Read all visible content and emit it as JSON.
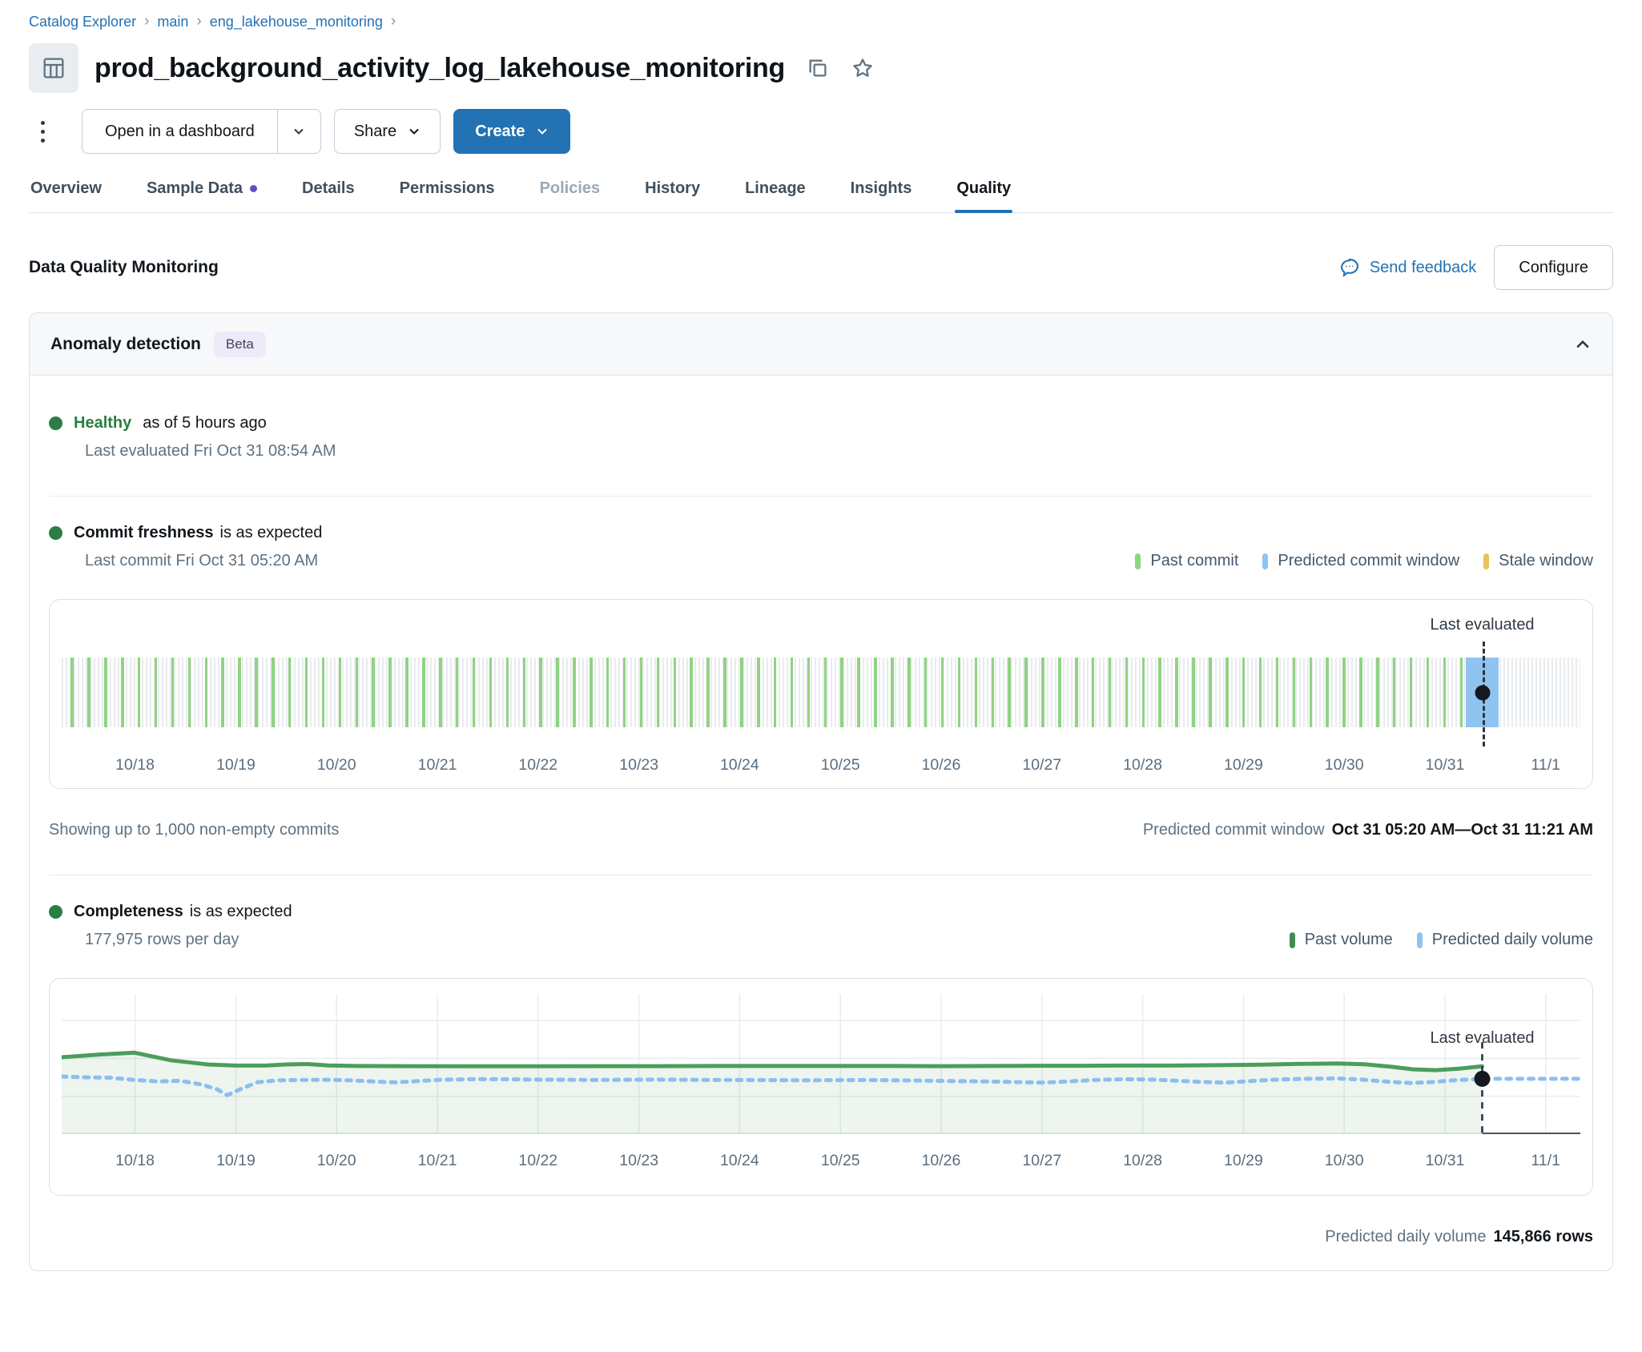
{
  "breadcrumb": {
    "items": [
      "Catalog Explorer",
      "main",
      "eng_lakehouse_monitoring"
    ],
    "separator": "›"
  },
  "header": {
    "title": "prod_background_activity_log_lakehouse_monitoring"
  },
  "actions": {
    "open_dashboard": "Open in a dashboard",
    "share": "Share",
    "create": "Create"
  },
  "tabs": [
    {
      "label": "Overview"
    },
    {
      "label": "Sample Data",
      "dot": true
    },
    {
      "label": "Details"
    },
    {
      "label": "Permissions"
    },
    {
      "label": "Policies",
      "muted": true
    },
    {
      "label": "History"
    },
    {
      "label": "Lineage"
    },
    {
      "label": "Insights"
    },
    {
      "label": "Quality",
      "active": true
    }
  ],
  "page": {
    "section_title": "Data Quality Monitoring",
    "send_feedback": "Send feedback",
    "configure": "Configure"
  },
  "card": {
    "title": "Anomaly detection",
    "badge": "Beta",
    "status": {
      "label": "Healthy",
      "suffix": "as of 5 hours ago",
      "detail": "Last evaluated Fri Oct 31 08:54 AM"
    },
    "commit": {
      "title": "Commit freshness",
      "suffix": "is as expected",
      "detail": "Last commit Fri Oct 31 05:20 AM",
      "legend": [
        {
          "label": "Past commit",
          "color": "#90d383"
        },
        {
          "label": "Predicted commit window",
          "color": "#8fc4f1"
        },
        {
          "label": "Stale window",
          "color": "#e9c25b"
        }
      ],
      "annotation": "Last evaluated",
      "footer_left": "Showing up to 1,000 non-empty commits",
      "footer_right_label": "Predicted commit window",
      "footer_right_value": "Oct 31 05:20 AM—Oct 31 11:21 AM"
    },
    "completeness": {
      "title": "Completeness",
      "suffix": "is as expected",
      "detail": "177,975 rows per day",
      "legend": [
        {
          "label": "Past volume",
          "color": "#3f8e4f"
        },
        {
          "label": "Predicted daily volume",
          "color": "#8fc4f1"
        }
      ],
      "annotation": "Last evaluated",
      "footer_label": "Predicted daily volume",
      "footer_value": "145,866 rows"
    }
  },
  "chart_data": [
    {
      "type": "commit-timeline",
      "title": "Commit freshness",
      "bar_color": "#90d383",
      "bar_count": 84,
      "bar_start_pct": 0.6,
      "bar_spacing_pct": 1.102,
      "window_start_pct": 92.44,
      "window_width_pct": 2.2,
      "last_evaluated_pct": 93.54,
      "window_label": "Predicted commit window Oct 31 05:20 AM—Oct 31 11:21 AM",
      "x_ticks": [
        {
          "pct": 4.83,
          "label": "10/18"
        },
        {
          "pct": 11.47,
          "label": "10/19"
        },
        {
          "pct": 18.1,
          "label": "10/20"
        },
        {
          "pct": 24.74,
          "label": "10/21"
        },
        {
          "pct": 31.37,
          "label": "10/22"
        },
        {
          "pct": 38.01,
          "label": "10/23"
        },
        {
          "pct": 44.64,
          "label": "10/24"
        },
        {
          "pct": 51.28,
          "label": "10/25"
        },
        {
          "pct": 57.91,
          "label": "10/26"
        },
        {
          "pct": 64.55,
          "label": "10/27"
        },
        {
          "pct": 71.18,
          "label": "10/28"
        },
        {
          "pct": 77.82,
          "label": "10/29"
        },
        {
          "pct": 84.45,
          "label": "10/30"
        },
        {
          "pct": 91.09,
          "label": "10/31"
        },
        {
          "pct": 97.72,
          "label": "11/1"
        }
      ]
    },
    {
      "type": "line",
      "title": "Completeness",
      "ylabel": "rows per day",
      "ylim": [
        0,
        370000
      ],
      "gridlines_y": [
        100000,
        200000,
        300000
      ],
      "last_evaluated_pct": 93.54,
      "last_evaluated_value": 146000,
      "vline_top_value": 243000,
      "series": [
        {
          "name": "Past volume",
          "color": "#4c9d5c",
          "style": "solid",
          "fill": "rgba(77,157,92,0.10)",
          "points": [
            [
              0,
              203000
            ],
            [
              2.4,
              210000
            ],
            [
              4.8,
              215000
            ],
            [
              7.2,
              195000
            ],
            [
              9.6,
              184000
            ],
            [
              11.5,
              181000
            ],
            [
              13.4,
              181000
            ],
            [
              14.8,
              184000
            ],
            [
              16.2,
              185000
            ],
            [
              17.6,
              181500
            ],
            [
              19.5,
              180000
            ],
            [
              23,
              179500
            ],
            [
              27,
              179000
            ],
            [
              31,
              179000
            ],
            [
              35,
              179500
            ],
            [
              39,
              179500
            ],
            [
              43,
              180000
            ],
            [
              47,
              180000
            ],
            [
              51,
              180000
            ],
            [
              55,
              180000
            ],
            [
              58,
              179500
            ],
            [
              61,
              180000
            ],
            [
              64,
              180500
            ],
            [
              67,
              180500
            ],
            [
              70,
              181000
            ],
            [
              73,
              181000
            ],
            [
              76,
              182000
            ],
            [
              79,
              183500
            ],
            [
              81.5,
              185500
            ],
            [
              84,
              186500
            ],
            [
              85.8,
              184500
            ],
            [
              87.5,
              178000
            ],
            [
              89,
              171000
            ],
            [
              90.5,
              169000
            ],
            [
              92,
              173000
            ],
            [
              93.54,
              179000
            ]
          ]
        },
        {
          "name": "Predicted daily volume",
          "color": "#8cbef0",
          "style": "dashed",
          "points": [
            [
              0,
              152000
            ],
            [
              1.6,
              150000
            ],
            [
              3.2,
              149000
            ],
            [
              4.8,
              143000
            ],
            [
              6.4,
              139000
            ],
            [
              7.8,
              141000
            ],
            [
              9.2,
              131000
            ],
            [
              10.2,
              119000
            ],
            [
              10.9,
              103000
            ],
            [
              11.9,
              121000
            ],
            [
              12.9,
              137000
            ],
            [
              14.2,
              142000
            ],
            [
              15.8,
              143000
            ],
            [
              17.4,
              143500
            ],
            [
              19,
              142000
            ],
            [
              20.6,
              139000
            ],
            [
              22,
              136500
            ],
            [
              23.4,
              140000
            ],
            [
              25,
              143500
            ],
            [
              27,
              145000
            ],
            [
              29,
              145000
            ],
            [
              31,
              144000
            ],
            [
              33,
              143500
            ],
            [
              35,
              143000
            ],
            [
              37,
              143500
            ],
            [
              39,
              144000
            ],
            [
              41,
              143500
            ],
            [
              43,
              143000
            ],
            [
              45,
              143000
            ],
            [
              47,
              142500
            ],
            [
              49,
              142000
            ],
            [
              51,
              142500
            ],
            [
              53,
              143000
            ],
            [
              55,
              142000
            ],
            [
              57,
              141000
            ],
            [
              59,
              140000
            ],
            [
              61,
              139000
            ],
            [
              63,
              137500
            ],
            [
              64.6,
              136000
            ],
            [
              66.2,
              139000
            ],
            [
              68,
              143000
            ],
            [
              70,
              145000
            ],
            [
              71.8,
              144000
            ],
            [
              73.4,
              141000
            ],
            [
              75,
              138000
            ],
            [
              76.6,
              136000
            ],
            [
              78.2,
              140000
            ],
            [
              80,
              144000
            ],
            [
              82,
              146000
            ],
            [
              84,
              147000
            ],
            [
              85.6,
              144000
            ],
            [
              87.2,
              139000
            ],
            [
              88.8,
              135000
            ],
            [
              90.2,
              137500
            ],
            [
              91.8,
              142500
            ],
            [
              93.54,
              146000
            ],
            [
              96,
              146000
            ],
            [
              98,
              146000
            ],
            [
              100,
              146000
            ]
          ]
        }
      ],
      "x_ticks": [
        {
          "pct": 4.83,
          "label": "10/18"
        },
        {
          "pct": 11.47,
          "label": "10/19"
        },
        {
          "pct": 18.1,
          "label": "10/20"
        },
        {
          "pct": 24.74,
          "label": "10/21"
        },
        {
          "pct": 31.37,
          "label": "10/22"
        },
        {
          "pct": 38.01,
          "label": "10/23"
        },
        {
          "pct": 44.64,
          "label": "10/24"
        },
        {
          "pct": 51.28,
          "label": "10/25"
        },
        {
          "pct": 57.91,
          "label": "10/26"
        },
        {
          "pct": 64.55,
          "label": "10/27"
        },
        {
          "pct": 71.18,
          "label": "10/28"
        },
        {
          "pct": 77.82,
          "label": "10/29"
        },
        {
          "pct": 84.45,
          "label": "10/30"
        },
        {
          "pct": 91.09,
          "label": "10/31"
        },
        {
          "pct": 97.72,
          "label": "11/1"
        }
      ]
    }
  ]
}
